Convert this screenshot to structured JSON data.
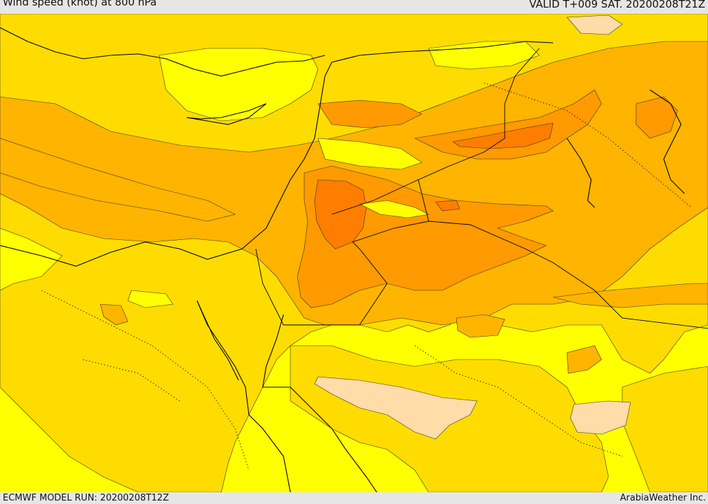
{
  "header": {
    "title": "Wind speed (knot) at 800 hPa",
    "valid": "VALID T+009 SAT. 20200208T21Z"
  },
  "footer": {
    "model_run": "ECMWF MODEL RUN: 20200208T12Z",
    "credit": "ArabiaWeather Inc."
  },
  "colors": {
    "band_lightest": "#ffffff",
    "band_pale": "#ffdca8",
    "band_yellow": "#ffff00",
    "band_gold": "#ffdc00",
    "band_amber": "#ffb400",
    "band_orange": "#ff9a00",
    "band_deep_orange": "#ff7e00",
    "coastline": "#000000"
  }
}
